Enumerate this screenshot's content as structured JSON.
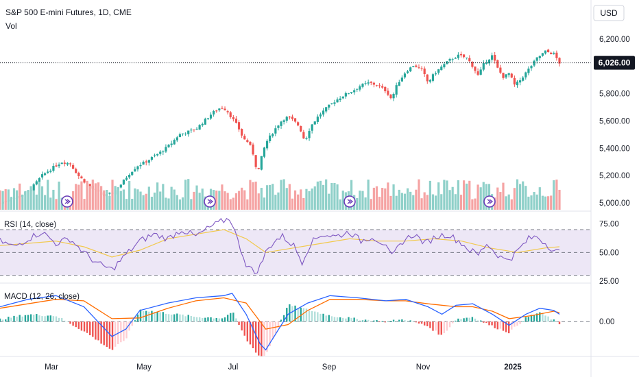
{
  "header": {
    "title": "S&P 500 E-mini Futures, 1D, CME",
    "volume_label": "Vol",
    "currency_button": "USD"
  },
  "colors": {
    "up": "#26a69a",
    "down": "#ef5350",
    "volume_up": "#8fd0c9",
    "volume_down": "#f5a3a3",
    "rsi_line": "#7e57c2",
    "rsi_ma": "#f2c94c",
    "rsi_band": "#ede7f6",
    "macd_line": "#2962ff",
    "signal_line": "#ff6d00",
    "price_tag_bg": "#131722",
    "dividend_marker": "#673ab7"
  },
  "chart_data": [
    {
      "type": "candlestick",
      "pane": "price",
      "title": "S&P 500 E-mini Futures, 1D, CME",
      "current_price": 6026,
      "current_price_label": "6,026.00",
      "y_ticks": [
        5000,
        5200,
        5400,
        5600,
        5800,
        6200
      ],
      "y_tick_labels": [
        "5,000.00",
        "5,200.00",
        "5,400.00",
        "5,600.00",
        "5,800.00",
        "6,200.00"
      ],
      "x_tick_labels": [
        "Mar",
        "May",
        "Jul",
        "Sep",
        "Nov",
        "2025"
      ],
      "close_path": [
        [
          0,
          5000
        ],
        [
          8,
          5030
        ],
        [
          16,
          5060
        ],
        [
          22,
          5100
        ],
        [
          30,
          5200
        ],
        [
          38,
          5260
        ],
        [
          44,
          5300
        ],
        [
          50,
          5290
        ],
        [
          56,
          5200
        ],
        [
          62,
          5140
        ],
        [
          68,
          5090
        ],
        [
          74,
          5050
        ],
        [
          80,
          5070
        ],
        [
          86,
          5130
        ],
        [
          92,
          5210
        ],
        [
          98,
          5270
        ],
        [
          104,
          5300
        ],
        [
          110,
          5340
        ],
        [
          116,
          5380
        ],
        [
          122,
          5430
        ],
        [
          128,
          5500
        ],
        [
          134,
          5520
        ],
        [
          140,
          5540
        ],
        [
          146,
          5600
        ],
        [
          152,
          5660
        ],
        [
          158,
          5700
        ],
        [
          162,
          5680
        ],
        [
          166,
          5620
        ],
        [
          170,
          5560
        ],
        [
          174,
          5470
        ],
        [
          178,
          5440
        ],
        [
          182,
          5330
        ],
        [
          184,
          5200
        ],
        [
          186,
          5300
        ],
        [
          190,
          5440
        ],
        [
          194,
          5500
        ],
        [
          198,
          5560
        ],
        [
          202,
          5610
        ],
        [
          206,
          5630
        ],
        [
          210,
          5600
        ],
        [
          214,
          5560
        ],
        [
          218,
          5450
        ],
        [
          222,
          5560
        ],
        [
          228,
          5640
        ],
        [
          234,
          5700
        ],
        [
          240,
          5750
        ],
        [
          246,
          5790
        ],
        [
          252,
          5820
        ],
        [
          258,
          5860
        ],
        [
          264,
          5880
        ],
        [
          270,
          5860
        ],
        [
          276,
          5820
        ],
        [
          280,
          5760
        ],
        [
          284,
          5870
        ],
        [
          290,
          5960
        ],
        [
          296,
          6010
        ],
        [
          302,
          5970
        ],
        [
          306,
          5880
        ],
        [
          310,
          5940
        ],
        [
          316,
          6000
        ],
        [
          322,
          6050
        ],
        [
          328,
          6080
        ],
        [
          334,
          6060
        ],
        [
          338,
          6000
        ],
        [
          342,
          5930
        ],
        [
          346,
          6020
        ],
        [
          352,
          6080
        ],
        [
          356,
          5980
        ],
        [
          360,
          5920
        ],
        [
          364,
          5950
        ],
        [
          368,
          5860
        ],
        [
          372,
          5900
        ],
        [
          378,
          5980
        ],
        [
          384,
          6060
        ],
        [
          390,
          6110
        ],
        [
          396,
          6090
        ],
        [
          400,
          6026
        ]
      ],
      "volume_range": [
        0,
        1
      ]
    },
    {
      "type": "line",
      "pane": "RSI",
      "title": "RSI (14, close)",
      "y_ticks": [
        25,
        50,
        75
      ],
      "y_tick_labels": [
        "25.00",
        "50.00",
        "75.00"
      ],
      "band": [
        30,
        70
      ],
      "series": [
        {
          "values": [
            [
              0,
              60
            ],
            [
              10,
              55
            ],
            [
              20,
              62
            ],
            [
              30,
              68
            ],
            [
              40,
              58
            ],
            [
              50,
              62
            ],
            [
              60,
              50
            ],
            [
              70,
              40
            ],
            [
              80,
              35
            ],
            [
              90,
              48
            ],
            [
              100,
              60
            ],
            [
              110,
              66
            ],
            [
              120,
              62
            ],
            [
              130,
              70
            ],
            [
              140,
              64
            ],
            [
              150,
              72
            ],
            [
              160,
              78
            ],
            [
              165,
              80
            ],
            [
              170,
              60
            ],
            [
              176,
              40
            ],
            [
              182,
              32
            ],
            [
              186,
              38
            ],
            [
              190,
              50
            ],
            [
              196,
              60
            ],
            [
              202,
              64
            ],
            [
              210,
              56
            ],
            [
              216,
              42
            ],
            [
              222,
              58
            ],
            [
              230,
              66
            ],
            [
              240,
              64
            ],
            [
              250,
              68
            ],
            [
              258,
              60
            ],
            [
              266,
              64
            ],
            [
              274,
              58
            ],
            [
              280,
              46
            ],
            [
              288,
              60
            ],
            [
              296,
              66
            ],
            [
              304,
              58
            ],
            [
              312,
              64
            ],
            [
              320,
              66
            ],
            [
              328,
              60
            ],
            [
              336,
              52
            ],
            [
              342,
              48
            ],
            [
              348,
              58
            ],
            [
              354,
              50
            ],
            [
              360,
              44
            ],
            [
              366,
              46
            ],
            [
              372,
              54
            ],
            [
              378,
              62
            ],
            [
              384,
              64
            ],
            [
              390,
              58
            ],
            [
              396,
              52
            ],
            [
              400,
              50
            ]
          ]
        },
        {
          "values": [
            [
              0,
              56
            ],
            [
              20,
              58
            ],
            [
              40,
              60
            ],
            [
              60,
              55
            ],
            [
              80,
              46
            ],
            [
              100,
              52
            ],
            [
              120,
              62
            ],
            [
              140,
              66
            ],
            [
              160,
              70
            ],
            [
              176,
              62
            ],
            [
              190,
              50
            ],
            [
              210,
              54
            ],
            [
              230,
              58
            ],
            [
              250,
              62
            ],
            [
              270,
              60
            ],
            [
              290,
              60
            ],
            [
              310,
              62
            ],
            [
              330,
              60
            ],
            [
              350,
              54
            ],
            [
              370,
              50
            ],
            [
              390,
              54
            ],
            [
              400,
              55
            ]
          ]
        }
      ]
    },
    {
      "type": "line",
      "pane": "MACD",
      "title": "MACD (12, 26, close)",
      "y_ticks": [
        0
      ],
      "y_tick_labels": [
        "0.00"
      ],
      "series": [
        {
          "values": [
            [
              0,
              20
            ],
            [
              20,
              30
            ],
            [
              40,
              35
            ],
            [
              60,
              20
            ],
            [
              70,
              0
            ],
            [
              80,
              -20
            ],
            [
              90,
              -10
            ],
            [
              100,
              15
            ],
            [
              120,
              25
            ],
            [
              140,
              32
            ],
            [
              160,
              35
            ],
            [
              166,
              38
            ],
            [
              176,
              10
            ],
            [
              186,
              -30
            ],
            [
              190,
              -38
            ],
            [
              196,
              -20
            ],
            [
              206,
              10
            ],
            [
              220,
              25
            ],
            [
              236,
              35
            ],
            [
              256,
              32
            ],
            [
              276,
              28
            ],
            [
              290,
              30
            ],
            [
              306,
              20
            ],
            [
              316,
              10
            ],
            [
              326,
              22
            ],
            [
              338,
              24
            ],
            [
              352,
              10
            ],
            [
              364,
              -5
            ],
            [
              376,
              10
            ],
            [
              386,
              18
            ],
            [
              396,
              15
            ],
            [
              400,
              10
            ]
          ]
        },
        {
          "values": [
            [
              0,
              18
            ],
            [
              20,
              24
            ],
            [
              40,
              30
            ],
            [
              60,
              28
            ],
            [
              80,
              4
            ],
            [
              100,
              5
            ],
            [
              120,
              18
            ],
            [
              140,
              28
            ],
            [
              160,
              32
            ],
            [
              176,
              25
            ],
            [
              190,
              -10
            ],
            [
              206,
              -4
            ],
            [
              220,
              15
            ],
            [
              236,
              30
            ],
            [
              256,
              30
            ],
            [
              276,
              28
            ],
            [
              290,
              28
            ],
            [
              306,
              24
            ],
            [
              326,
              20
            ],
            [
              338,
              20
            ],
            [
              352,
              14
            ],
            [
              364,
              4
            ],
            [
              380,
              8
            ],
            [
              396,
              14
            ],
            [
              400,
              12
            ]
          ]
        }
      ]
    }
  ]
}
